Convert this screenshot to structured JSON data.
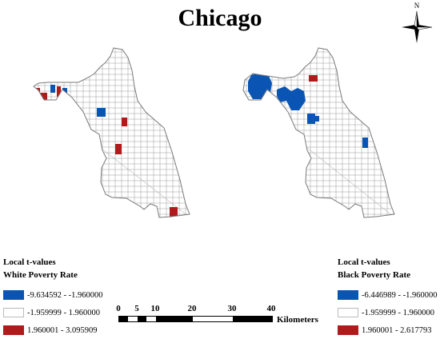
{
  "title": "Chicago",
  "north_label": "N",
  "colors": {
    "negative": "#0a55b4",
    "neutral": "#ffffff",
    "positive": "#b01a1a",
    "grid": "#9a9a9a"
  },
  "maps": [
    {
      "name": "White Poverty Rate",
      "legend_heading": "Local t-values",
      "legend_title": "White Poverty Rate",
      "classes": [
        {
          "range": "-9.634592 - -1.960000",
          "color": "#0a55b4"
        },
        {
          "range": "-1.959999 - 1.960000",
          "color": "#ffffff"
        },
        {
          "range": "1.960001 - 3.095909",
          "color": "#b01a1a"
        }
      ]
    },
    {
      "name": "Black Poverty Rate",
      "legend_heading": "Local t-values",
      "legend_title": "Black Poverty Rate",
      "classes": [
        {
          "range": "-6.446989 - -1.960000",
          "color": "#0a55b4"
        },
        {
          "range": "-1.959999 - 1.960000",
          "color": "#ffffff"
        },
        {
          "range": "1.960001 - 2.617793",
          "color": "#b01a1a"
        }
      ]
    }
  ],
  "scale_bar": {
    "ticks": [
      "0",
      "5",
      "10",
      "20",
      "30",
      "40"
    ],
    "unit": "Kilometers"
  }
}
